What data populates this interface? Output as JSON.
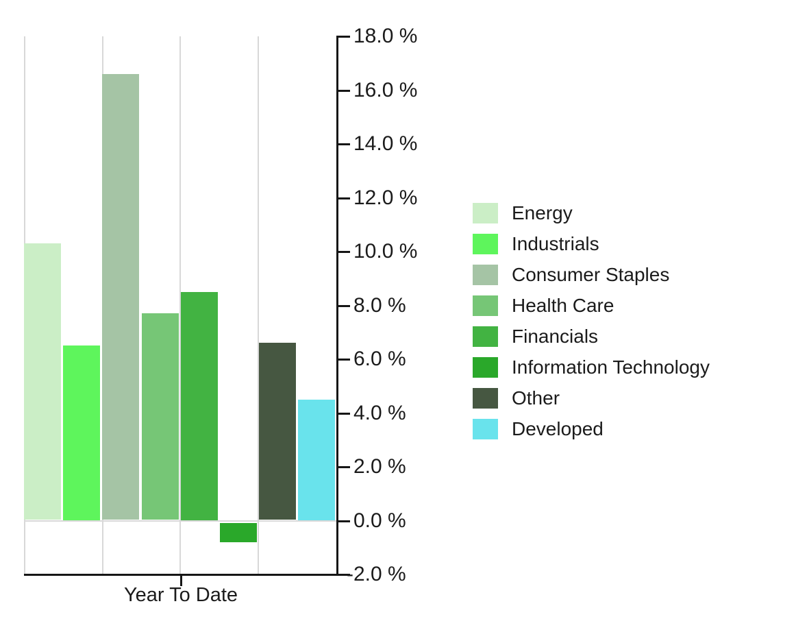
{
  "chart_data": {
    "type": "bar",
    "title": "",
    "categories": [
      "Year To Date"
    ],
    "series": [
      {
        "name": "Energy",
        "color": "#cbeec6",
        "values": [
          10.3
        ]
      },
      {
        "name": "Industrials",
        "color": "#5ef55c",
        "values": [
          6.5
        ]
      },
      {
        "name": "Consumer Staples",
        "color": "#a5c4a5",
        "values": [
          16.6
        ]
      },
      {
        "name": "Health Care",
        "color": "#76c676",
        "values": [
          7.7
        ]
      },
      {
        "name": "Financials",
        "color": "#42b342",
        "values": [
          8.5
        ]
      },
      {
        "name": "Information Technology",
        "color": "#2aa82a",
        "values": [
          -0.8
        ]
      },
      {
        "name": "Other",
        "color": "#465741",
        "values": [
          6.6
        ]
      },
      {
        "name": "Developed",
        "color": "#69e3ec",
        "values": [
          4.5
        ]
      }
    ],
    "xlabel": "Year To Date",
    "ylabel": "",
    "ylim": [
      -2,
      18
    ],
    "ytick_step": 2,
    "ytick_labels": [
      "18.0 %",
      "16.0 %",
      "14.0 %",
      "12.0 %",
      "10.0 %",
      "8.0 %",
      "6.0 %",
      "4.0 %",
      "2.0 %",
      "0.0 %",
      "-2.0 %"
    ],
    "legend_position": "right",
    "grid": "vertical",
    "axis_color": "#161616",
    "gridline_color": "#d8d8d8",
    "background_color": "#ffffff"
  }
}
